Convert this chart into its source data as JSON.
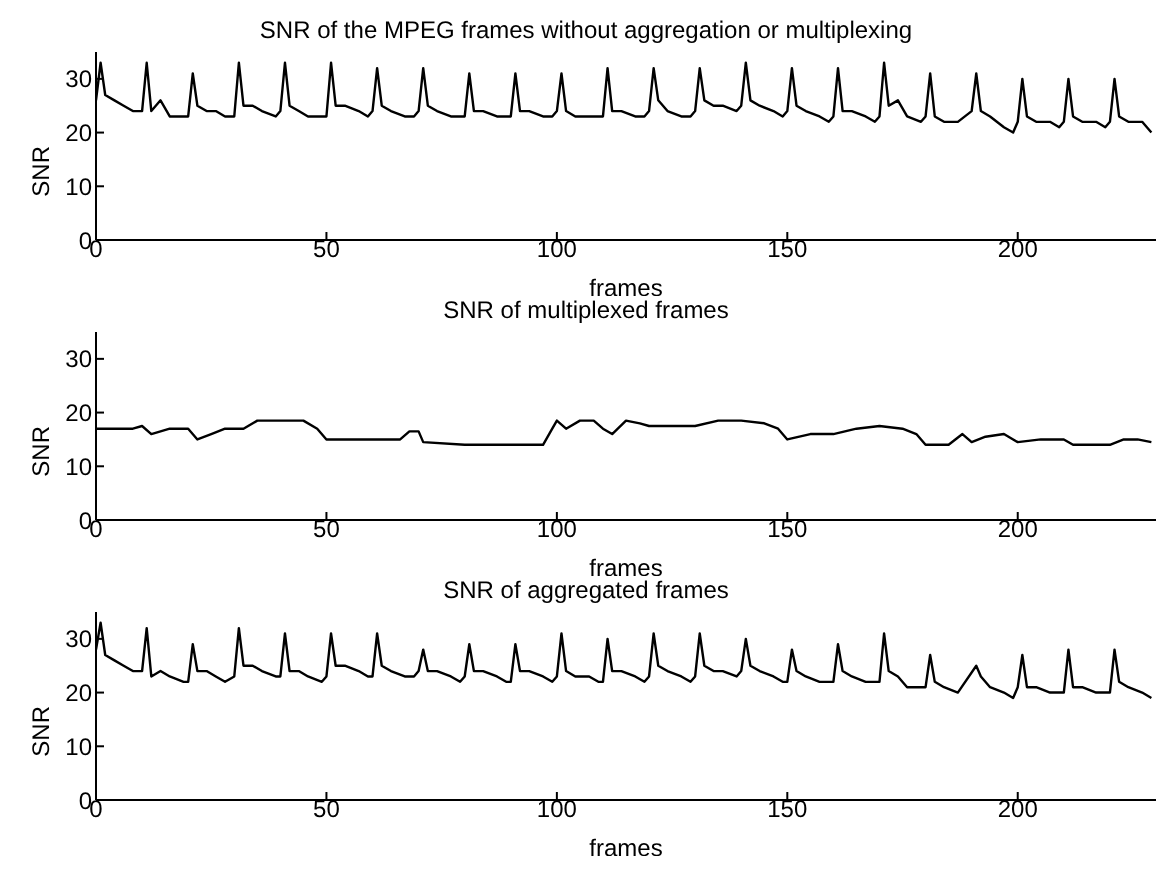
{
  "chart_data": [
    {
      "type": "line",
      "title": "SNR of the MPEG frames without aggregation or multiplexing",
      "xlabel": "frames",
      "ylabel": "SNR",
      "xlim": [
        0,
        230
      ],
      "ylim": [
        0,
        35
      ],
      "xticks": [
        0,
        50,
        100,
        150,
        200
      ],
      "yticks": [
        0,
        10,
        20,
        30
      ],
      "color": "#000000",
      "x": [
        0,
        1,
        2,
        4,
        6,
        8,
        10,
        11,
        12,
        14,
        16,
        19,
        20,
        21,
        22,
        24,
        26,
        28,
        30,
        31,
        32,
        34,
        36,
        39,
        40,
        41,
        42,
        44,
        46,
        49,
        50,
        51,
        52,
        54,
        57,
        59,
        60,
        61,
        62,
        64,
        67,
        69,
        70,
        71,
        72,
        74,
        77,
        79,
        80,
        81,
        82,
        84,
        87,
        89,
        90,
        91,
        92,
        94,
        97,
        99,
        100,
        101,
        102,
        104,
        107,
        109,
        110,
        111,
        112,
        114,
        117,
        119,
        120,
        121,
        122,
        124,
        127,
        129,
        130,
        131,
        132,
        134,
        136,
        139,
        140,
        141,
        142,
        144,
        147,
        149,
        150,
        151,
        152,
        154,
        157,
        159,
        160,
        161,
        162,
        164,
        167,
        169,
        170,
        171,
        172,
        174,
        176,
        179,
        180,
        181,
        182,
        184,
        187,
        190,
        191,
        192,
        194,
        197,
        199,
        200,
        201,
        202,
        204,
        207,
        209,
        210,
        211,
        212,
        214,
        217,
        219,
        220,
        221,
        222,
        224,
        227,
        229
      ],
      "values": [
        26,
        33,
        27,
        26,
        25,
        24,
        24,
        33,
        24,
        26,
        23,
        23,
        23,
        31,
        25,
        24,
        24,
        23,
        23,
        33,
        25,
        25,
        24,
        23,
        24,
        33,
        25,
        24,
        23,
        23,
        23,
        33,
        25,
        25,
        24,
        23,
        24,
        32,
        25,
        24,
        23,
        23,
        24,
        32,
        25,
        24,
        23,
        23,
        23,
        31,
        24,
        24,
        23,
        23,
        23,
        31,
        24,
        24,
        23,
        23,
        24,
        31,
        24,
        23,
        23,
        23,
        23,
        32,
        24,
        24,
        23,
        23,
        24,
        32,
        26,
        24,
        23,
        23,
        24,
        32,
        26,
        25,
        25,
        24,
        25,
        33,
        26,
        25,
        24,
        23,
        24,
        32,
        25,
        24,
        23,
        22,
        23,
        32,
        24,
        24,
        23,
        22,
        23,
        33,
        25,
        26,
        23,
        22,
        23,
        31,
        23,
        22,
        22,
        24,
        31,
        24,
        23,
        21,
        20,
        22,
        30,
        23,
        22,
        22,
        21,
        22,
        30,
        23,
        22,
        22,
        21,
        22,
        30,
        23,
        22,
        22,
        20
      ]
    },
    {
      "type": "line",
      "title": "SNR of multiplexed frames",
      "xlabel": "frames",
      "ylabel": "SNR",
      "xlim": [
        0,
        230
      ],
      "ylim": [
        0,
        35
      ],
      "xticks": [
        0,
        50,
        100,
        150,
        200
      ],
      "yticks": [
        0,
        10,
        20,
        30
      ],
      "color": "#000000",
      "x": [
        0,
        8,
        10,
        12,
        16,
        20,
        22,
        25,
        28,
        32,
        35,
        40,
        45,
        48,
        50,
        55,
        60,
        66,
        68,
        70,
        71,
        80,
        90,
        97,
        99,
        100,
        102,
        105,
        108,
        110,
        112,
        115,
        118,
        120,
        125,
        130,
        135,
        140,
        145,
        148,
        150,
        155,
        160,
        165,
        170,
        175,
        178,
        180,
        185,
        188,
        190,
        193,
        197,
        200,
        205,
        210,
        212,
        220,
        223,
        226,
        229
      ],
      "values": [
        17,
        17,
        17.5,
        16,
        17,
        17,
        15,
        16,
        17,
        17,
        18.5,
        18.5,
        18.5,
        17,
        15,
        15,
        15,
        15,
        16.5,
        16.5,
        14.5,
        14,
        14,
        14,
        17,
        18.5,
        17,
        18.5,
        18.5,
        17,
        16,
        18.5,
        18,
        17.5,
        17.5,
        17.5,
        18.5,
        18.5,
        18,
        17,
        15,
        16,
        16,
        17,
        17.5,
        17,
        16,
        14,
        14,
        16,
        14.5,
        15.5,
        16,
        14.5,
        15,
        15,
        14,
        14,
        15,
        15,
        14.5
      ]
    },
    {
      "type": "line",
      "title": "SNR of aggregated frames",
      "xlabel": "frames",
      "ylabel": "SNR",
      "xlim": [
        0,
        230
      ],
      "ylim": [
        0,
        35
      ],
      "xticks": [
        0,
        50,
        100,
        150,
        200
      ],
      "yticks": [
        0,
        10,
        20,
        30
      ],
      "color": "#000000",
      "x": [
        0,
        1,
        2,
        4,
        6,
        8,
        10,
        11,
        12,
        14,
        16,
        19,
        20,
        21,
        22,
        24,
        26,
        28,
        30,
        31,
        32,
        34,
        36,
        39,
        40,
        41,
        42,
        44,
        46,
        49,
        50,
        51,
        52,
        54,
        57,
        59,
        60,
        61,
        62,
        64,
        67,
        69,
        70,
        71,
        72,
        74,
        77,
        79,
        80,
        81,
        82,
        84,
        87,
        89,
        90,
        91,
        92,
        94,
        97,
        99,
        100,
        101,
        102,
        104,
        107,
        109,
        110,
        111,
        112,
        114,
        117,
        119,
        120,
        121,
        122,
        124,
        127,
        129,
        130,
        131,
        132,
        134,
        136,
        139,
        140,
        141,
        142,
        144,
        147,
        149,
        150,
        151,
        152,
        154,
        157,
        159,
        160,
        161,
        162,
        164,
        167,
        169,
        170,
        171,
        172,
        174,
        176,
        179,
        180,
        181,
        182,
        184,
        187,
        191,
        192,
        194,
        197,
        199,
        200,
        201,
        202,
        204,
        207,
        209,
        210,
        211,
        212,
        214,
        217,
        219,
        220,
        221,
        222,
        224,
        227,
        229
      ],
      "values": [
        28,
        33,
        27,
        26,
        25,
        24,
        24,
        32,
        23,
        24,
        23,
        22,
        22,
        29,
        24,
        24,
        23,
        22,
        23,
        32,
        25,
        25,
        24,
        23,
        23,
        31,
        24,
        24,
        23,
        22,
        23,
        31,
        25,
        25,
        24,
        23,
        23,
        31,
        25,
        24,
        23,
        23,
        24,
        28,
        24,
        24,
        23,
        22,
        23,
        29,
        24,
        24,
        23,
        22,
        22,
        29,
        24,
        24,
        23,
        22,
        23,
        31,
        24,
        23,
        23,
        22,
        22,
        30,
        24,
        24,
        23,
        22,
        23,
        31,
        25,
        24,
        23,
        22,
        23,
        31,
        25,
        24,
        24,
        23,
        24,
        30,
        25,
        24,
        23,
        22,
        22,
        28,
        24,
        23,
        22,
        22,
        22,
        29,
        24,
        23,
        22,
        22,
        22,
        31,
        24,
        23,
        21,
        21,
        21,
        27,
        22,
        21,
        20,
        25,
        23,
        21,
        20,
        19,
        21,
        27,
        21,
        21,
        20,
        20,
        20,
        28,
        21,
        21,
        20,
        20,
        20,
        28,
        22,
        21,
        20,
        19
      ]
    }
  ]
}
